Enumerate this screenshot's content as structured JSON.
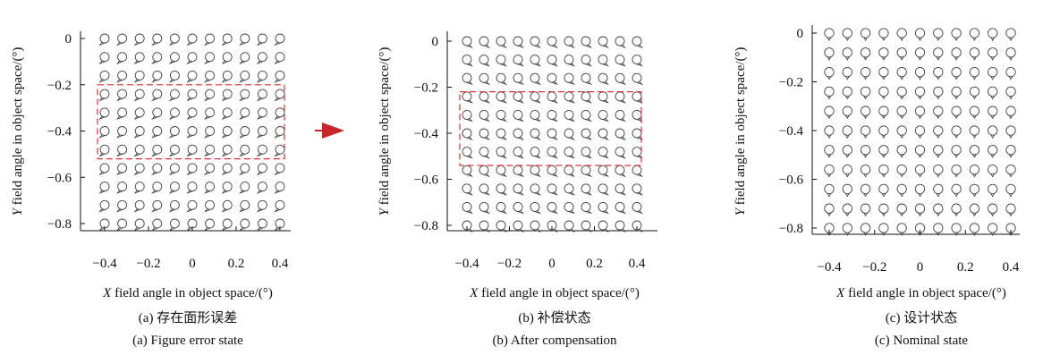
{
  "chart_data": [
    {
      "type": "scatter",
      "panel": "a",
      "caption_cn": "(a) 存在面形误差",
      "caption_en": "(a) Figure error state",
      "xlabel_var": "X",
      "xlabel_rest": " field angle in object space/(°)",
      "ylabel_var": "Y",
      "ylabel_rest": " field angle in object space/(°)",
      "xlim": [
        -0.4,
        0.4
      ],
      "ylim": [
        -0.8,
        0
      ],
      "x_ticks": [
        "−0.4",
        "−0.2",
        "0",
        "0.2",
        "0.4"
      ],
      "y_ticks": [
        "0",
        "−0.2",
        "−0.4",
        "−0.6",
        "−0.8"
      ],
      "x": [
        -0.4,
        -0.32,
        -0.24,
        -0.16,
        -0.08,
        0,
        0.08,
        0.16,
        0.24,
        0.32,
        0.4
      ],
      "y": [
        0,
        -0.08,
        -0.16,
        -0.24,
        -0.32,
        -0.4,
        -0.48,
        -0.56,
        -0.64,
        -0.72,
        -0.8
      ],
      "spot_orientation": "tail-left",
      "highlight": {
        "x": [
          -0.4,
          0.4
        ],
        "y": [
          -0.2,
          -0.52
        ],
        "style": "dashed",
        "color": "#e03030"
      }
    },
    {
      "type": "scatter",
      "panel": "b",
      "caption_cn": "(b) 补偿状态",
      "caption_en": "(b) After compensation",
      "xlabel_var": "X",
      "xlabel_rest": " field angle in object space/(°)",
      "ylabel_var": "Y",
      "ylabel_rest": " field angle in object space/(°)",
      "xlim": [
        -0.4,
        0.4
      ],
      "ylim": [
        -0.8,
        0
      ],
      "x_ticks": [
        "−0.4",
        "−0.2",
        "0",
        "0.2",
        "0.4"
      ],
      "y_ticks": [
        "0",
        "−0.2",
        "−0.4",
        "−0.6",
        "−0.8"
      ],
      "x": [
        -0.4,
        -0.32,
        -0.24,
        -0.16,
        -0.08,
        0,
        0.08,
        0.16,
        0.24,
        0.32,
        0.4
      ],
      "y": [
        0,
        -0.08,
        -0.16,
        -0.24,
        -0.32,
        -0.4,
        -0.48,
        -0.56,
        -0.64,
        -0.72,
        -0.8
      ],
      "spot_orientation": "tail-right",
      "highlight": {
        "x": [
          -0.4,
          0.4
        ],
        "y": [
          -0.22,
          -0.54
        ],
        "style": "dashed",
        "color": "#e03030"
      }
    },
    {
      "type": "scatter",
      "panel": "c",
      "caption_cn": "(c) 设计状态",
      "caption_en": "(c) Nominal state",
      "xlabel_var": "X",
      "xlabel_rest": " field angle in object space/(°)",
      "ylabel_var": "Y",
      "ylabel_rest": " field angle in object space/(°)",
      "xlim": [
        -0.4,
        0.4
      ],
      "ylim": [
        -0.8,
        0
      ],
      "x_ticks": [
        "−0.4",
        "−0.2",
        "0",
        "0.2",
        "0.4"
      ],
      "y_ticks": [
        "0",
        "−0.2",
        "−0.4",
        "−0.6",
        "−0.8"
      ],
      "x": [
        -0.4,
        -0.32,
        -0.24,
        -0.16,
        -0.08,
        0,
        0.08,
        0.16,
        0.24,
        0.32,
        0.4
      ],
      "y": [
        0,
        -0.08,
        -0.16,
        -0.24,
        -0.32,
        -0.4,
        -0.48,
        -0.56,
        -0.64,
        -0.72,
        -0.8
      ],
      "spot_orientation": "tail-down",
      "highlight": null
    }
  ],
  "arrow": {
    "color": "#c8262c",
    "icon": "arrow-right-icon"
  },
  "colors": {
    "spot": "#444444",
    "highlight": "#e03030",
    "arrow": "#c8262c"
  }
}
